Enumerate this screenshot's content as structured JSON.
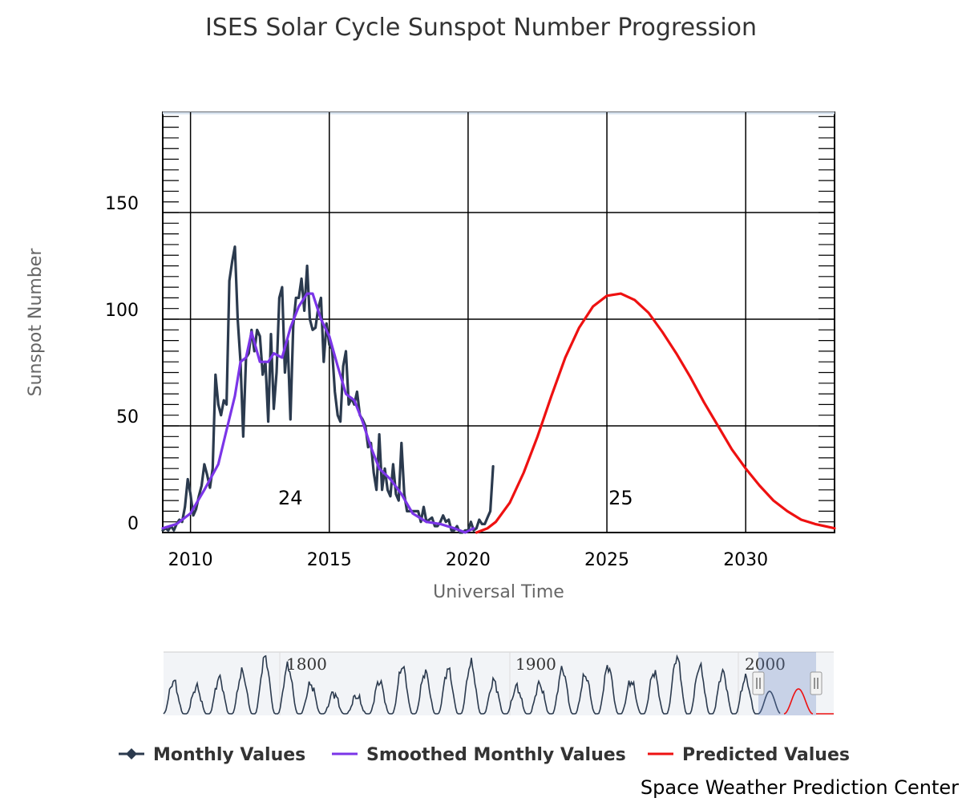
{
  "chart_data": {
    "type": "line",
    "title": "ISES Solar Cycle Sunspot Number Progression",
    "xlabel": "Universal Time",
    "ylabel": "Sunspot Number",
    "xlim": [
      2009,
      2033.2
    ],
    "ylim": [
      0,
      197
    ],
    "x_ticks": [
      "2010",
      "2015",
      "2020",
      "2025",
      "2030"
    ],
    "y_ticks": [
      "0",
      "50",
      "100",
      "150"
    ],
    "grid": true,
    "legend_position": "bottom",
    "cycle_labels": [
      {
        "text": "24",
        "x": 2013.6,
        "y": 17
      },
      {
        "text": "25",
        "x": 2025.5,
        "y": 17
      }
    ],
    "series": [
      {
        "name": "Monthly Values",
        "color": "#2b3a4e",
        "x": [
          2009.0,
          2009.1,
          2009.2,
          2009.3,
          2009.4,
          2009.5,
          2009.6,
          2009.7,
          2009.8,
          2009.9,
          2010.0,
          2010.1,
          2010.2,
          2010.3,
          2010.4,
          2010.5,
          2010.6,
          2010.7,
          2010.8,
          2010.9,
          2011.0,
          2011.1,
          2011.2,
          2011.3,
          2011.4,
          2011.5,
          2011.6,
          2011.7,
          2011.8,
          2011.9,
          2012.0,
          2012.1,
          2012.2,
          2012.3,
          2012.4,
          2012.5,
          2012.6,
          2012.7,
          2012.8,
          2012.9,
          2013.0,
          2013.1,
          2013.2,
          2013.3,
          2013.4,
          2013.5,
          2013.6,
          2013.7,
          2013.8,
          2013.9,
          2014.0,
          2014.1,
          2014.2,
          2014.3,
          2014.4,
          2014.5,
          2014.6,
          2014.7,
          2014.8,
          2014.9,
          2015.0,
          2015.1,
          2015.2,
          2015.3,
          2015.4,
          2015.5,
          2015.6,
          2015.7,
          2015.8,
          2015.9,
          2016.0,
          2016.1,
          2016.2,
          2016.3,
          2016.4,
          2016.5,
          2016.6,
          2016.7,
          2016.8,
          2016.9,
          2017.0,
          2017.1,
          2017.2,
          2017.3,
          2017.4,
          2017.5,
          2017.6,
          2017.7,
          2017.8,
          2017.9,
          2018.0,
          2018.1,
          2018.2,
          2018.3,
          2018.4,
          2018.5,
          2018.6,
          2018.7,
          2018.8,
          2018.9,
          2019.0,
          2019.1,
          2019.2,
          2019.3,
          2019.4,
          2019.5,
          2019.6,
          2019.7,
          2019.8,
          2019.9,
          2020.0,
          2020.1,
          2020.2,
          2020.3,
          2020.4,
          2020.5,
          2020.6,
          2020.7,
          2020.8,
          2020.9
        ],
        "values": [
          1,
          2,
          1,
          3,
          1,
          4,
          6,
          5,
          12,
          25,
          18,
          8,
          11,
          17,
          22,
          32,
          27,
          21,
          30,
          74,
          60,
          55,
          62,
          60,
          118,
          127,
          134,
          100,
          80,
          45,
          82,
          84,
          95,
          85,
          95,
          92,
          74,
          80,
          52,
          93,
          58,
          75,
          110,
          115,
          75,
          90,
          53,
          97,
          110,
          110,
          119,
          104,
          125,
          100,
          95,
          96,
          105,
          110,
          80,
          98,
          88,
          86,
          66,
          55,
          52,
          78,
          85,
          60,
          63,
          60,
          66,
          55,
          53,
          50,
          40,
          42,
          28,
          20,
          46,
          20,
          30,
          20,
          17,
          32,
          18,
          15,
          42,
          18,
          10,
          10,
          10,
          10,
          10,
          5,
          12,
          5,
          6,
          7,
          3,
          3,
          5,
          8,
          5,
          6,
          1,
          1,
          3,
          0,
          0,
          1,
          1,
          5,
          1,
          2,
          6,
          4,
          4,
          7,
          10,
          31
        ]
      },
      {
        "name": "Smoothed Monthly Values",
        "color": "#7b35e8",
        "x": [
          2009.0,
          2009.5,
          2010.0,
          2010.5,
          2011.0,
          2011.3,
          2011.6,
          2011.8,
          2012.0,
          2012.2,
          2012.5,
          2012.8,
          2013.0,
          2013.3,
          2013.6,
          2013.9,
          2014.2,
          2014.4,
          2014.7,
          2015.0,
          2015.3,
          2015.6,
          2015.9,
          2016.2,
          2016.5,
          2016.8,
          2017.2,
          2017.6,
          2018.0,
          2018.5,
          2019.0,
          2019.5,
          2019.9,
          2020.2
        ],
        "values": [
          2,
          4,
          9,
          20,
          32,
          48,
          64,
          80,
          82,
          94,
          80,
          80,
          84,
          82,
          96,
          106,
          112,
          112,
          100,
          92,
          78,
          65,
          62,
          52,
          40,
          30,
          25,
          18,
          9,
          5,
          4,
          2,
          0,
          2
        ]
      },
      {
        "name": "Predicted Values",
        "color": "#ee1111",
        "x": [
          2020.3,
          2020.7,
          2021.0,
          2021.5,
          2022.0,
          2022.5,
          2023.0,
          2023.5,
          2024.0,
          2024.5,
          2025.0,
          2025.5,
          2026.0,
          2026.5,
          2027.0,
          2027.5,
          2028.0,
          2028.5,
          2029.0,
          2029.5,
          2030.0,
          2030.5,
          2031.0,
          2031.5,
          2032.0,
          2032.5,
          2033.2
        ],
        "values": [
          0,
          2,
          5,
          14,
          28,
          45,
          64,
          82,
          96,
          106,
          111,
          112,
          109,
          103,
          94,
          84,
          73,
          61,
          50,
          39,
          30,
          22,
          15,
          10,
          6,
          4,
          2
        ]
      }
    ]
  },
  "navigator": {
    "ticks": [
      "1800",
      "1900",
      "2000"
    ]
  },
  "legend": {
    "items": [
      {
        "label": "Monthly Values",
        "color": "#2b3a4e"
      },
      {
        "label": "Smoothed Monthly Values",
        "color": "#7b35e8"
      },
      {
        "label": "Predicted Values",
        "color": "#ee1111"
      }
    ]
  },
  "credit": "Space Weather Prediction Center"
}
